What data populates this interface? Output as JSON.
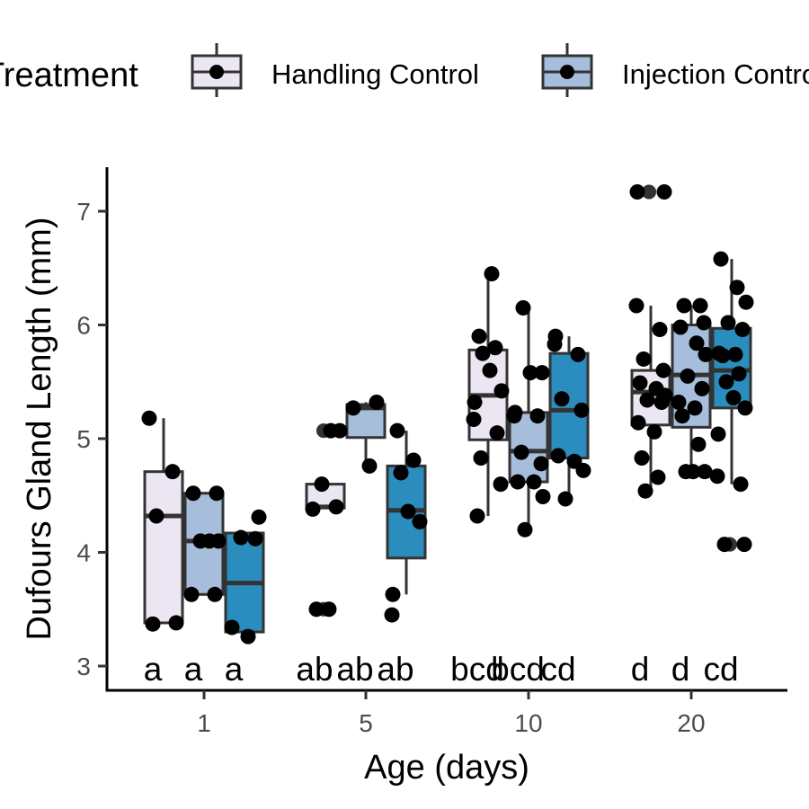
{
  "chart_data": {
    "type": "boxplot",
    "xlabel": "Age (days)",
    "ylabel": "Dufours Gland Length (mm)",
    "ylim": [
      2.95,
      7.4
    ],
    "yticks": [
      3,
      4,
      5,
      6,
      7
    ],
    "categories": [
      "1",
      "5",
      "10",
      "20"
    ],
    "grid": false,
    "legend": {
      "title": "Treatment",
      "position": "top",
      "items": [
        {
          "label": "Handling Control",
          "color": "#ece6f3"
        },
        {
          "label": "Injection Control",
          "color": "#a6bddb"
        }
      ]
    },
    "colors": [
      "#ece6f3",
      "#a6bddb",
      "#2b8cbe"
    ],
    "series": [
      {
        "name": "Handling Control",
        "color": "#ece6f3",
        "boxes": [
          {
            "min": 3.38,
            "q1": 3.38,
            "median": 4.32,
            "q3": 4.71,
            "max": 5.18
          },
          {
            "min": 4.38,
            "q1": 4.39,
            "median": 4.4,
            "q3": 4.6,
            "max": 4.6
          },
          {
            "min": 4.32,
            "q1": 4.99,
            "median": 5.38,
            "q3": 5.78,
            "max": 6.45
          },
          {
            "min": 4.54,
            "q1": 5.12,
            "median": 5.41,
            "q3": 5.6,
            "max": 6.17
          }
        ],
        "outliers": [
          [],
          [
            3.5,
            5.07,
            5.07
          ],
          [],
          [
            7.17,
            7.17
          ]
        ],
        "points": [
          [
            5.18,
            4.71,
            4.32,
            3.38,
            3.37
          ],
          [
            5.07,
            5.07,
            4.6,
            4.4,
            4.38,
            3.5,
            3.5
          ],
          [
            6.45,
            5.9,
            5.8,
            5.75,
            5.6,
            5.42,
            5.32,
            5.17,
            5.05,
            4.83,
            4.6,
            4.32
          ],
          [
            7.17,
            7.17,
            6.17,
            5.96,
            5.7,
            5.6,
            5.49,
            5.44,
            5.38,
            5.34,
            5.32,
            5.14,
            5.06,
            4.83,
            4.66,
            4.54
          ]
        ]
      },
      {
        "name": "Injection Control",
        "color": "#a6bddb",
        "boxes": [
          {
            "min": 3.63,
            "q1": 3.63,
            "median": 4.1,
            "q3": 4.52,
            "max": 4.52
          },
          {
            "min": 4.76,
            "q1": 5.01,
            "median": 5.27,
            "q3": 5.3,
            "max": 5.32
          },
          {
            "min": 4.2,
            "q1": 4.62,
            "median": 4.89,
            "q3": 5.23,
            "max": 6.15
          },
          {
            "min": 4.71,
            "q1": 5.1,
            "median": 5.56,
            "q3": 6.0,
            "max": 6.17
          }
        ],
        "outliers": [
          [],
          [],
          [],
          []
        ],
        "points": [
          [
            4.52,
            4.52,
            4.1,
            4.1,
            4.1,
            3.63,
            3.63
          ],
          [
            5.32,
            5.27,
            4.76
          ],
          [
            6.15,
            5.58,
            5.58,
            5.23,
            5.2,
            5.2,
            4.88,
            4.78,
            4.62,
            4.62,
            4.49,
            4.2
          ],
          [
            6.17,
            6.17,
            6.02,
            5.98,
            5.84,
            5.74,
            5.55,
            5.44,
            5.32,
            5.27,
            5.2,
            4.95,
            4.71,
            4.71,
            4.71
          ]
        ]
      },
      {
        "name": "",
        "color": "#2b8cbe",
        "boxes": [
          {
            "min": 3.3,
            "q1": 3.3,
            "median": 3.73,
            "q3": 4.17,
            "max": 4.17
          },
          {
            "min": 3.63,
            "q1": 3.95,
            "median": 4.37,
            "q3": 4.76,
            "max": 5.07
          },
          {
            "min": 4.47,
            "q1": 4.83,
            "median": 5.25,
            "q3": 5.75,
            "max": 5.9
          },
          {
            "min": 4.6,
            "q1": 5.27,
            "median": 5.6,
            "q3": 5.97,
            "max": 6.58
          }
        ],
        "outliers": [
          [],
          [],
          [],
          [
            4.07,
            4.07
          ]
        ],
        "points": [
          [
            4.31,
            4.13,
            4.12,
            3.34,
            3.26
          ],
          [
            5.07,
            4.81,
            4.7,
            4.36,
            4.27,
            3.63,
            3.45
          ],
          [
            5.9,
            5.83,
            5.74,
            5.35,
            5.25,
            4.85,
            4.8,
            4.72,
            4.47
          ],
          [
            6.58,
            6.33,
            6.2,
            6.02,
            5.96,
            5.75,
            5.74,
            5.73,
            5.57,
            5.5,
            5.36,
            5.27,
            5.04,
            4.67,
            4.6,
            4.07,
            4.07
          ]
        ]
      }
    ],
    "group_letters": [
      [
        "a",
        "a",
        "a"
      ],
      [
        "ab",
        "ab",
        "ab"
      ],
      [
        "bcd",
        "bcd",
        "cd"
      ],
      [
        "d",
        "d",
        "cd"
      ]
    ]
  }
}
